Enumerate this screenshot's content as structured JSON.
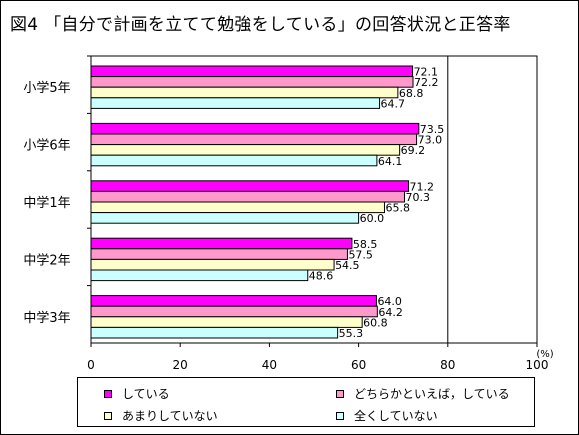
{
  "title": "図4 「自分で計画を立てて勉強をしている」の回答状況と正答率",
  "chart_data": {
    "type": "bar",
    "orientation": "horizontal",
    "categories": [
      "小学5年",
      "小学6年",
      "中学1年",
      "中学2年",
      "中学3年"
    ],
    "series": [
      {
        "name": "している",
        "color": "#ff00ff",
        "values": [
          72.1,
          73.5,
          71.2,
          58.5,
          64.0
        ]
      },
      {
        "name": "どちらかといえば，している",
        "color": "#ff99cc",
        "values": [
          72.2,
          73.0,
          70.3,
          57.5,
          64.2
        ]
      },
      {
        "name": "あまりしていない",
        "color": "#ffffcc",
        "values": [
          68.8,
          69.2,
          65.8,
          54.5,
          60.8
        ]
      },
      {
        "name": "全くしていない",
        "color": "#ccffff",
        "values": [
          64.7,
          64.1,
          60.0,
          48.6,
          55.3
        ]
      }
    ],
    "xlim": [
      0,
      100
    ],
    "xticks": [
      0,
      20,
      40,
      60,
      80,
      100
    ],
    "unit_label": "(%)",
    "grid": "vertical gridline at 80",
    "legend_position": "bottom",
    "value_labels": true
  }
}
